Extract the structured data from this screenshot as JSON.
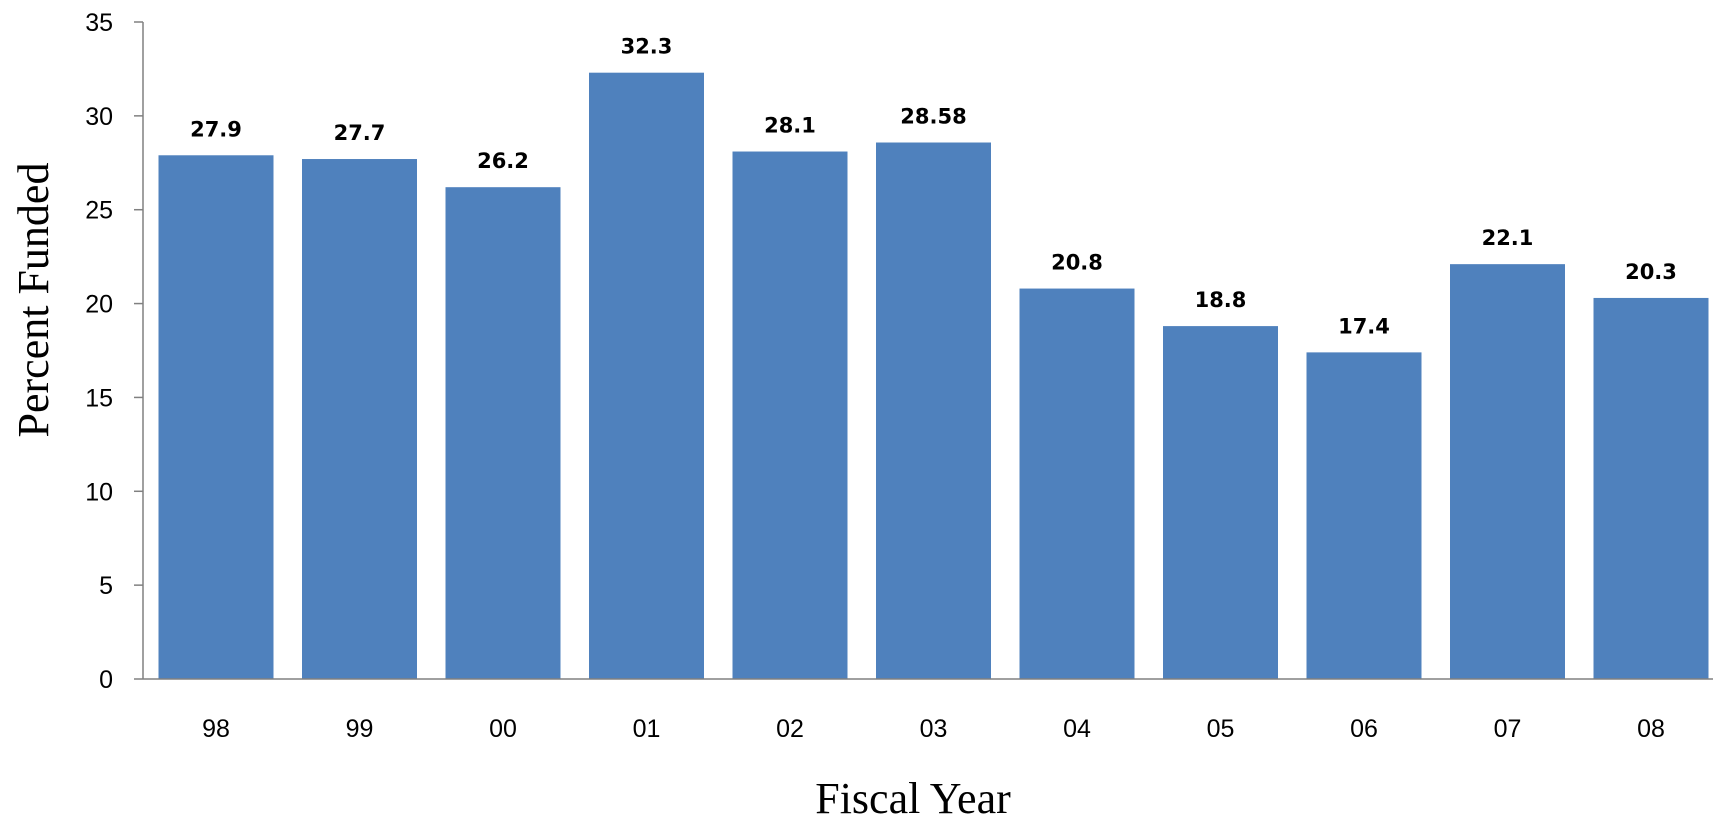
{
  "chart_data": {
    "type": "bar",
    "title": "",
    "xlabel": "Fiscal Year",
    "ylabel": "Percent Funded",
    "categories": [
      "98",
      "99",
      "00",
      "01",
      "02",
      "03",
      "04",
      "05",
      "06",
      "07",
      "08"
    ],
    "values": [
      27.9,
      27.7,
      26.2,
      32.3,
      28.1,
      28.58,
      20.8,
      18.8,
      17.4,
      22.1,
      20.3
    ],
    "value_labels": [
      "27.9",
      "27.7",
      "26.2",
      "32.3",
      "28.1",
      "28.58",
      "20.8",
      "18.8",
      "17.4",
      "22.1",
      "20.3"
    ],
    "ylim": [
      0,
      35
    ],
    "yticks": [
      "0",
      "5",
      "10",
      "15",
      "20",
      "25",
      "30",
      "35"
    ],
    "grid": false,
    "legend": "none",
    "bar_color": "#4f81bd",
    "axis_color": "#808080"
  }
}
